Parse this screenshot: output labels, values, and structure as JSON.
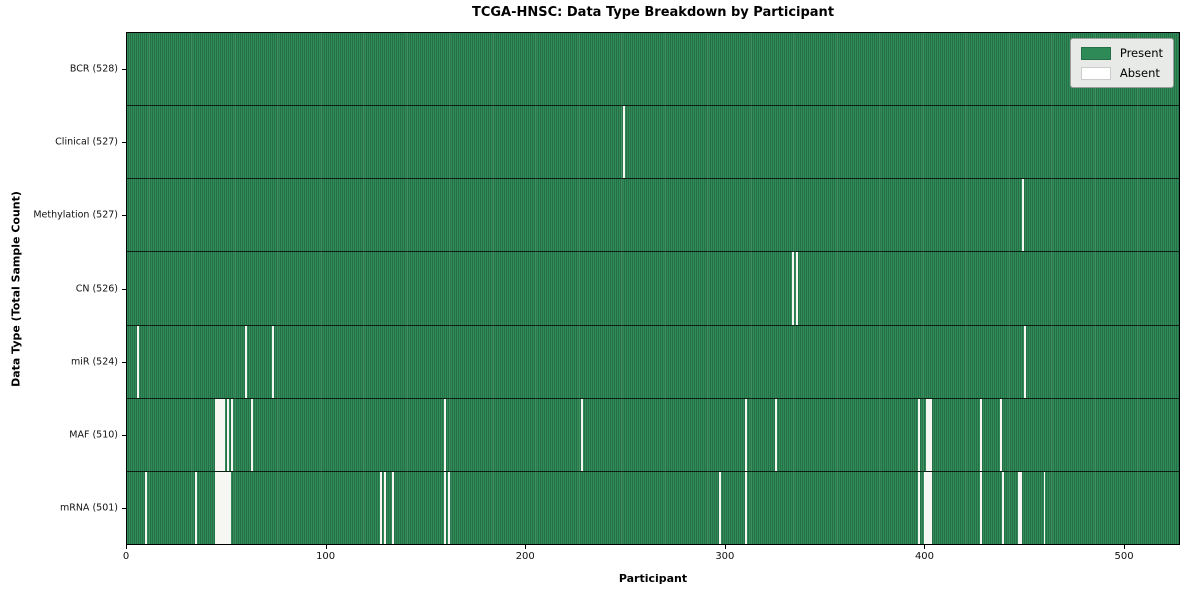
{
  "figure": {
    "title": "TCGA-HNSC: Data Type Breakdown by Participant",
    "xlabel": "Participant",
    "ylabel": "Data Type (Total Sample Count)"
  },
  "legend": {
    "present_label": "Present",
    "absent_label": "Absent"
  },
  "colors": {
    "present": "#2e8b57",
    "present_edge": "#276f47",
    "absent": "#f6f6f3",
    "legend_bg": "#e8eae8",
    "row_divider": "#0a0f08"
  },
  "chart_data": {
    "type": "heatmap",
    "title": "TCGA-HNSC: Data Type Breakdown by Participant",
    "xlabel": "Participant",
    "ylabel": "Data Type (Total Sample Count)",
    "legend_entries": [
      "Present",
      "Absent"
    ],
    "legend_position": "upper right",
    "n_participants": 528,
    "x_ticks": [
      0,
      100,
      200,
      300,
      400,
      500
    ],
    "x_range": [
      0,
      528
    ],
    "cell_states": {
      "present": 1,
      "absent": 0
    },
    "rows": [
      {
        "data_type": "BCR",
        "label": "BCR (528)",
        "present_count": 528,
        "absent_count": 0,
        "absent_participants": []
      },
      {
        "data_type": "Clinical",
        "label": "Clinical (527)",
        "present_count": 527,
        "absent_count": 1,
        "absent_participants": [
          249
        ]
      },
      {
        "data_type": "Methylation",
        "label": "Methylation (527)",
        "present_count": 527,
        "absent_count": 1,
        "absent_participants": [
          449
        ]
      },
      {
        "data_type": "CN",
        "label": "CN (526)",
        "present_count": 526,
        "absent_count": 2,
        "absent_participants": [
          334,
          336
        ]
      },
      {
        "data_type": "miR",
        "label": "miR (524)",
        "present_count": 524,
        "absent_count": 4,
        "absent_participants": [
          5,
          59,
          73,
          450
        ]
      },
      {
        "data_type": "MAF",
        "label": "MAF (510)",
        "present_count": 510,
        "absent_count": 18,
        "absent_participants": [
          44,
          45,
          46,
          47,
          48,
          50,
          52,
          62,
          159,
          228,
          310,
          325,
          397,
          401,
          402,
          403,
          428,
          438
        ]
      },
      {
        "data_type": "mRNA",
        "label": "mRNA (501)",
        "present_count": 501,
        "absent_count": 27,
        "absent_participants": [
          9,
          34,
          44,
          45,
          46,
          47,
          48,
          49,
          50,
          51,
          127,
          129,
          133,
          159,
          161,
          297,
          310,
          397,
          400,
          401,
          402,
          403,
          428,
          439,
          447,
          448,
          460
        ]
      }
    ]
  }
}
